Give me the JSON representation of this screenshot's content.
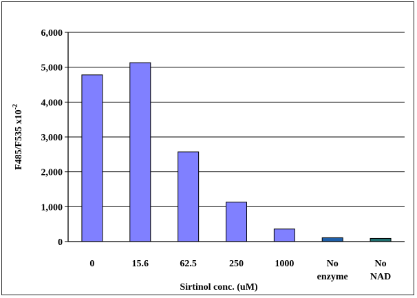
{
  "chart_data": {
    "type": "bar",
    "categories": [
      [
        "0"
      ],
      [
        "15.6"
      ],
      [
        "62.5"
      ],
      [
        "250"
      ],
      [
        "1000"
      ],
      [
        "No",
        "enzyme"
      ],
      [
        "No",
        "NAD"
      ]
    ],
    "values": [
      4780,
      5130,
      2570,
      1130,
      360,
      110,
      90
    ],
    "bar_colors": [
      "#8080ff",
      "#8080ff",
      "#8080ff",
      "#8080ff",
      "#8080ff",
      "#1f5fa8",
      "#1f6f6f"
    ],
    "xlabel": "Sirtinol conc. (uM)",
    "ylabel": "F485/F535 x10",
    "ylabel_superscript": "-2",
    "ylim": [
      0,
      6000
    ],
    "yticks": [
      0,
      1000,
      2000,
      3000,
      4000,
      5000,
      6000
    ],
    "ytick_labels": [
      "0",
      "1,000",
      "2,000",
      "3,000",
      "4,000",
      "5,000",
      "6,000"
    ],
    "grid": true,
    "legend": "none"
  }
}
